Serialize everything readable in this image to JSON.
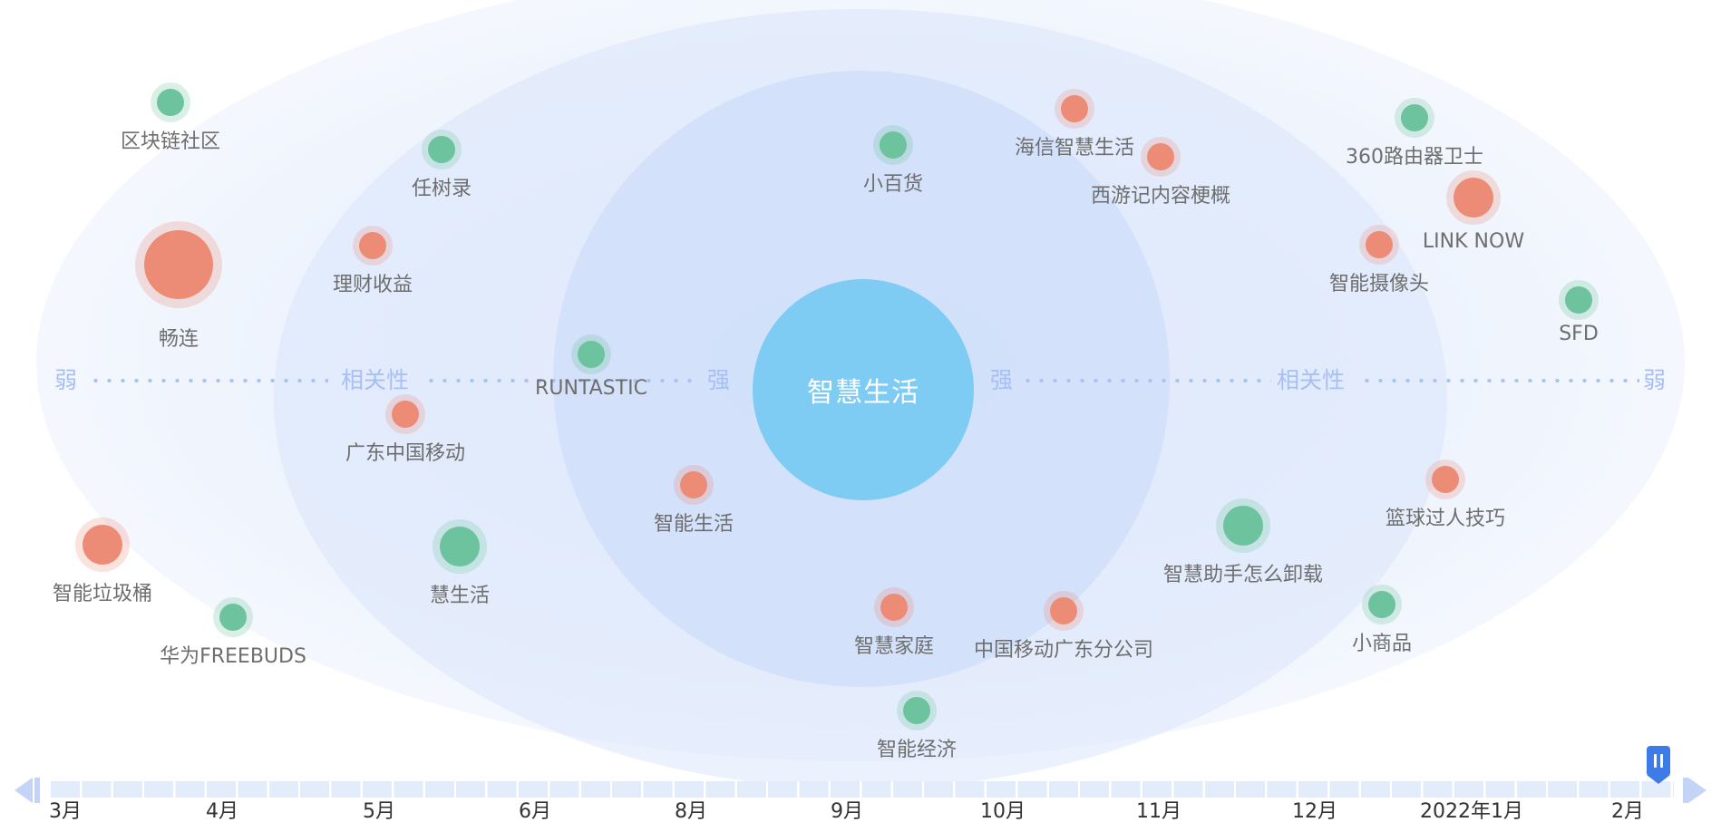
{
  "center": {
    "label": "智慧生活"
  },
  "axis": {
    "weak": "弱",
    "relevance": "相关性",
    "strong": "强"
  },
  "colors": {
    "positive_green": "#6dc39d",
    "negative_red": "#ed8c76",
    "center_blue": "#7ecbf3",
    "accent_blue": "#3d7be9"
  },
  "nodes": [
    {
      "label": "区块链社区",
      "color": "green",
      "size": "small"
    },
    {
      "label": "任树录",
      "color": "green",
      "size": "small"
    },
    {
      "label": "小百货",
      "color": "green",
      "size": "small"
    },
    {
      "label": "海信智慧生活",
      "color": "red",
      "size": "small"
    },
    {
      "label": "西游记内容梗概",
      "color": "red",
      "size": "small"
    },
    {
      "label": "360路由器卫士",
      "color": "green",
      "size": "small"
    },
    {
      "label": "LINK NOW",
      "color": "red",
      "size": "medium"
    },
    {
      "label": "畅连",
      "color": "red",
      "size": "large"
    },
    {
      "label": "理财收益",
      "color": "red",
      "size": "small"
    },
    {
      "label": "智能摄像头",
      "color": "red",
      "size": "small"
    },
    {
      "label": "SFD",
      "color": "green",
      "size": "small"
    },
    {
      "label": "RUNTASTIC",
      "color": "green",
      "size": "small"
    },
    {
      "label": "广东中国移动",
      "color": "red",
      "size": "small"
    },
    {
      "label": "篮球过人技巧",
      "color": "red",
      "size": "small"
    },
    {
      "label": "智能生活",
      "color": "red",
      "size": "small"
    },
    {
      "label": "智慧助手怎么卸载",
      "color": "green",
      "size": "medium"
    },
    {
      "label": "智能垃圾桶",
      "color": "red",
      "size": "medium"
    },
    {
      "label": "慧生活",
      "color": "green",
      "size": "medium"
    },
    {
      "label": "小商品",
      "color": "green",
      "size": "small"
    },
    {
      "label": "华为FREEBUDS",
      "color": "green",
      "size": "small"
    },
    {
      "label": "智慧家庭",
      "color": "red",
      "size": "small"
    },
    {
      "label": "中国移动广东分公司",
      "color": "red",
      "size": "small"
    },
    {
      "label": "智能经济",
      "color": "green",
      "size": "small"
    }
  ],
  "timeline": {
    "ticks": [
      "3月",
      "4月",
      "5月",
      "6月",
      "8月",
      "9月",
      "10月",
      "11月",
      "12月",
      "2022年1月",
      "2月"
    ],
    "current": "2月"
  }
}
